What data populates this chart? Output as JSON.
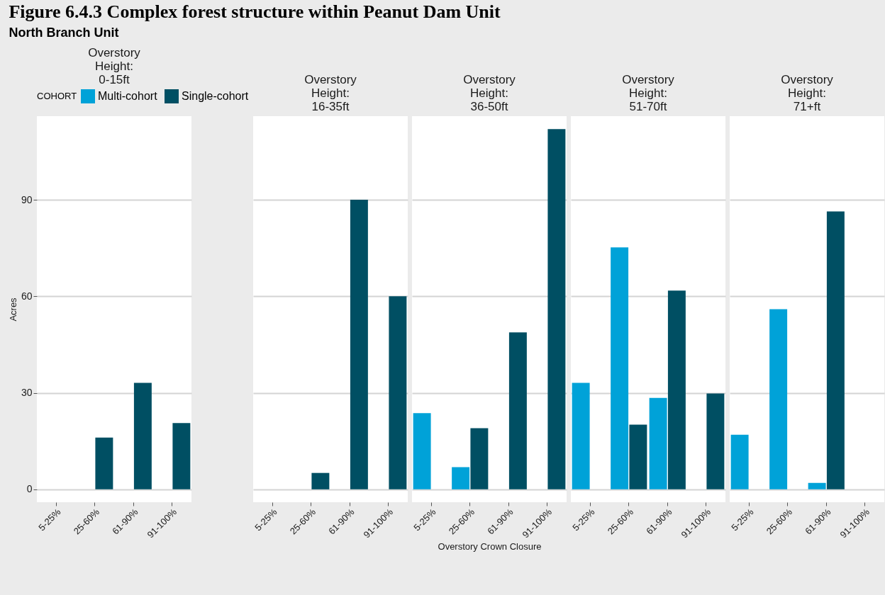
{
  "chart_data": [
    {
      "type": "bar",
      "title": "Overstory\nHeight:\n0-15ft",
      "annotations": [
        "Figure 6.4.3 Complex forest structure within Peanut Dam Unit",
        "North Branch Unit"
      ],
      "ylabel": "Acres",
      "legend_title": "COHORT",
      "legend": "top",
      "grid": "y",
      "categories": [
        "5-25%",
        "25-60%",
        "61-90%",
        "91-100%"
      ],
      "ylim": [
        -4,
        116
      ],
      "yticks": [
        0,
        30,
        60,
        90
      ],
      "series": [
        {
          "name": "Multi-cohort",
          "color": "#00a2d8",
          "values": [
            null,
            null,
            null,
            null
          ]
        },
        {
          "name": "Single-cohort",
          "color": "#004f63",
          "values": [
            null,
            16.1,
            33.1,
            20.6
          ]
        }
      ]
    },
    {
      "type": "bar",
      "title": "Overstory\nHeight:\n16-35ft",
      "grid": "y",
      "tick_labels": "x",
      "categories": [
        "5-25%",
        "25-60%",
        "61-90%",
        "91-100%"
      ],
      "ylim": [
        -4,
        116
      ],
      "yticks": [
        0,
        30,
        60,
        90
      ],
      "series": [
        {
          "color": "#00a2d8",
          "values": [
            null,
            null,
            null,
            null
          ]
        },
        {
          "color": "#004f63",
          "values": [
            null,
            5.1,
            90,
            60
          ]
        }
      ]
    },
    {
      "type": "bar",
      "title": "Overstory\nHeight:\n36-50ft",
      "xlabel": "Overstory Crown Closure",
      "grid": "y",
      "tick_labels": "x",
      "categories": [
        "5-25%",
        "25-60%",
        "61-90%",
        "91-100%"
      ],
      "ylim": [
        -4,
        116
      ],
      "yticks": [
        0,
        30,
        60,
        90
      ],
      "series": [
        {
          "color": "#00a2d8",
          "values": [
            23.7,
            6.9,
            null,
            null
          ]
        },
        {
          "color": "#004f63",
          "values": [
            null,
            19,
            48.8,
            112
          ]
        }
      ]
    },
    {
      "type": "bar",
      "title": "Overstory\nHeight:\n51-70ft",
      "grid": "y",
      "tick_labels": "x",
      "categories": [
        "5-25%",
        "25-60%",
        "61-90%",
        "91-100%"
      ],
      "ylim": [
        -4,
        116
      ],
      "yticks": [
        0,
        30,
        60,
        90
      ],
      "series": [
        {
          "color": "#00a2d8",
          "values": [
            33.1,
            75.2,
            28.4,
            null
          ]
        },
        {
          "color": "#004f63",
          "values": [
            null,
            20.1,
            61.8,
            29.8
          ]
        }
      ]
    },
    {
      "type": "bar",
      "title": "Overstory\nHeight:\n71+ft",
      "grid": "y",
      "tick_labels": "x",
      "categories": [
        "5-25%",
        "25-60%",
        "61-90%",
        "91-100%"
      ],
      "ylim": [
        -4,
        116
      ],
      "yticks": [
        0,
        30,
        60,
        90
      ],
      "series": [
        {
          "color": "#00a2d8",
          "values": [
            17,
            56,
            2,
            null
          ]
        },
        {
          "color": "#004f63",
          "values": [
            null,
            null,
            86.4,
            null
          ]
        }
      ]
    }
  ]
}
